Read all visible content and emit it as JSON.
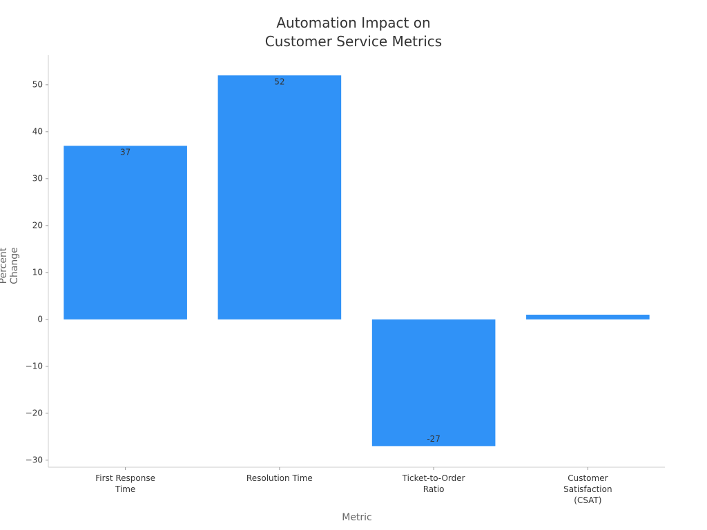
{
  "chart_data": {
    "type": "bar",
    "title": "Automation Impact on Customer Service Metrics",
    "x_label": "Metric",
    "y_label": "Percent Change",
    "categories": [
      "First Response Time",
      "Resolution Time",
      "Ticket-to-Order Ratio",
      "Customer Satisfaction (CSAT)"
    ],
    "values": [
      37,
      52,
      -27,
      1
    ],
    "value_labels": [
      "37",
      "52",
      "-27",
      null
    ],
    "color": "#3092f7",
    "ylim": [
      -31.5,
      56.3
    ],
    "yticks": [
      {
        "value": -30,
        "label": "−30"
      },
      {
        "value": -20,
        "label": "−20"
      },
      {
        "value": -10,
        "label": "−10"
      },
      0,
      10,
      20,
      30,
      40,
      50
    ],
    "grid": false
  }
}
